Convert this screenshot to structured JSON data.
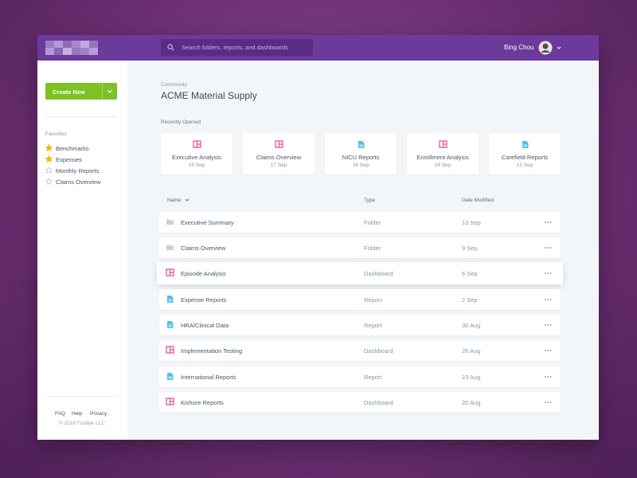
{
  "header": {
    "search_placeholder": "Search folders, reports, and dashboards",
    "user_name": "Bing Chou"
  },
  "sidebar": {
    "create_button": "Create New",
    "favorites_title": "Favorites",
    "favorites": [
      {
        "label": "Benchmarks",
        "starred": true
      },
      {
        "label": "Expenses",
        "starred": true
      },
      {
        "label": "Monthly Reports",
        "starred": false
      },
      {
        "label": "Claims Overview",
        "starred": false
      }
    ],
    "footer_links": [
      "FAQ",
      "Help",
      "Privacy"
    ],
    "copyright": "© 2016 FooBar LLC"
  },
  "main": {
    "breadcrumb": "Community",
    "title": "ACME Material Supply"
  },
  "recent": {
    "title": "Recently Opened",
    "items": [
      {
        "name": "Executive Analysis",
        "date": "19 Sep",
        "icon": "dashboard"
      },
      {
        "name": "Claims Overview",
        "date": "17 Sep",
        "icon": "dashboard"
      },
      {
        "name": "NICU Reports",
        "date": "16 Sep",
        "icon": "report"
      },
      {
        "name": "Enrollment Analysis",
        "date": "14 Sep",
        "icon": "dashboard"
      },
      {
        "name": "Carefield Reports",
        "date": "13 Sep",
        "icon": "report"
      }
    ]
  },
  "table": {
    "columns": [
      "Name",
      "Type",
      "Date Modified"
    ],
    "rows": [
      [
        "Executive Summary",
        "Folder",
        "13 Sep"
      ],
      [
        "Claims Overview",
        "Folder",
        "9 Sep"
      ],
      [
        "Episode Analysis",
        "Dashboard",
        "6 Sep"
      ],
      [
        "Expense Reports",
        "Report",
        "2 Sep"
      ],
      [
        "HRA/Clinical Data",
        "Report",
        "30 Aug"
      ],
      [
        "Implementation Testing",
        "Dashboard",
        "26 Aug"
      ],
      [
        "International Reports",
        "Report",
        "23 Aug"
      ],
      [
        "Kishore Reports",
        "Dashboard",
        "20 Aug"
      ]
    ]
  }
}
